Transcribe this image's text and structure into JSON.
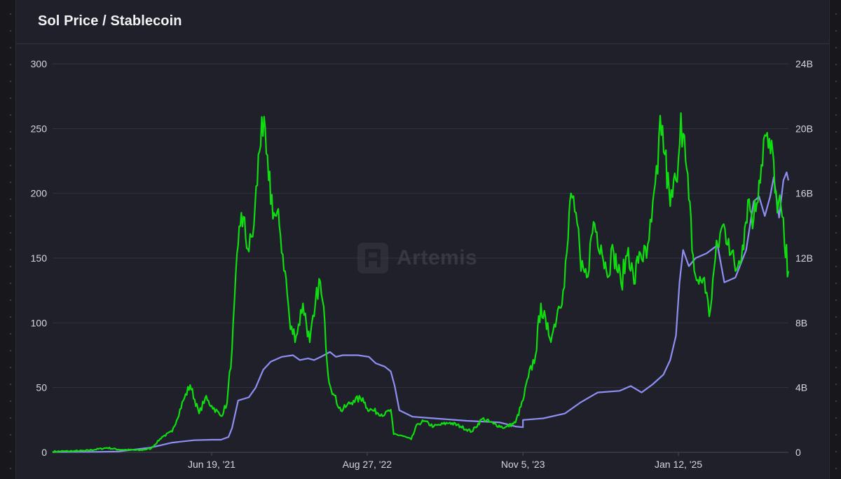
{
  "header": {
    "title": "Sol Price / Stablecoin"
  },
  "watermark": {
    "text": "Artemis"
  },
  "chart_data": {
    "type": "line",
    "title": "Sol Price / Stablecoin",
    "xlabel": "",
    "ylabel_left": "",
    "ylabel_right": "",
    "x_range": [
      "2020-04-01",
      "2025-11-15"
    ],
    "x_ticks": [
      {
        "date": "2021-06-19",
        "label": "Jun 19, '21"
      },
      {
        "date": "2022-08-27",
        "label": "Aug 27, '22"
      },
      {
        "date": "2023-11-05",
        "label": "Nov 5, '23"
      },
      {
        "date": "2025-01-12",
        "label": "Jan 12, '25"
      }
    ],
    "y_left": {
      "min": 0,
      "max": 300,
      "ticks": [
        "0",
        "50",
        "100",
        "150",
        "200",
        "250",
        "300"
      ]
    },
    "y_right": {
      "min": 0,
      "max": 24000000000,
      "ticks": [
        "0",
        "4B",
        "8B",
        "12B",
        "16B",
        "20B",
        "24B"
      ]
    },
    "grid": true,
    "legend": "none",
    "series": [
      {
        "axis": "left",
        "color": "#10dd10",
        "points": [
          [
            "2020-04-01",
            0.6
          ],
          [
            "2020-07-01",
            1.2
          ],
          [
            "2020-09-01",
            3.5
          ],
          [
            "2020-10-01",
            2.2
          ],
          [
            "2020-12-01",
            1.6
          ],
          [
            "2021-01-01",
            3
          ],
          [
            "2021-02-01",
            12
          ],
          [
            "2021-03-01",
            16
          ],
          [
            "2021-04-01",
            40
          ],
          [
            "2021-04-20",
            52
          ],
          [
            "2021-05-15",
            30
          ],
          [
            "2021-06-01",
            42
          ],
          [
            "2021-06-19",
            36
          ],
          [
            "2021-07-15",
            28
          ],
          [
            "2021-08-01",
            38
          ],
          [
            "2021-08-15",
            80
          ],
          [
            "2021-09-01",
            160
          ],
          [
            "2021-09-10",
            185
          ],
          [
            "2021-10-01",
            155
          ],
          [
            "2021-10-15",
            175
          ],
          [
            "2021-11-06",
            259
          ],
          [
            "2021-11-25",
            210
          ],
          [
            "2021-12-10",
            185
          ],
          [
            "2021-12-25",
            175
          ],
          [
            "2022-01-10",
            140
          ],
          [
            "2022-01-25",
            95
          ],
          [
            "2022-02-10",
            90
          ],
          [
            "2022-03-01",
            115
          ],
          [
            "2022-03-20",
            85
          ],
          [
            "2022-04-01",
            105
          ],
          [
            "2022-04-15",
            134
          ],
          [
            "2022-05-01",
            100
          ],
          [
            "2022-05-10",
            60
          ],
          [
            "2022-05-25",
            45
          ],
          [
            "2022-06-15",
            32
          ],
          [
            "2022-07-01",
            36
          ],
          [
            "2022-07-20",
            40
          ],
          [
            "2022-08-15",
            42
          ],
          [
            "2022-08-27",
            34
          ],
          [
            "2022-09-15",
            32
          ],
          [
            "2022-10-15",
            29
          ],
          [
            "2022-11-01",
            33
          ],
          [
            "2022-11-09",
            14
          ],
          [
            "2022-12-01",
            13
          ],
          [
            "2022-12-28",
            10
          ],
          [
            "2023-01-15",
            22
          ],
          [
            "2023-02-01",
            24
          ],
          [
            "2023-03-01",
            20
          ],
          [
            "2023-04-15",
            23
          ],
          [
            "2023-05-15",
            20
          ],
          [
            "2023-06-15",
            16
          ],
          [
            "2023-07-15",
            26
          ],
          [
            "2023-08-15",
            22
          ],
          [
            "2023-09-15",
            19
          ],
          [
            "2023-10-15",
            23
          ],
          [
            "2023-11-05",
            40
          ],
          [
            "2023-11-20",
            58
          ],
          [
            "2023-12-10",
            75
          ],
          [
            "2023-12-25",
            115
          ],
          [
            "2024-01-10",
            95
          ],
          [
            "2024-01-25",
            90
          ],
          [
            "2024-02-10",
            110
          ],
          [
            "2024-02-25",
            125
          ],
          [
            "2024-03-10",
            165
          ],
          [
            "2024-03-18",
            200
          ],
          [
            "2024-04-01",
            185
          ],
          [
            "2024-04-15",
            140
          ],
          [
            "2024-05-01",
            135
          ],
          [
            "2024-05-20",
            178
          ],
          [
            "2024-06-10",
            160
          ],
          [
            "2024-06-25",
            140
          ],
          [
            "2024-07-15",
            155
          ],
          [
            "2024-08-05",
            130
          ],
          [
            "2024-08-25",
            158
          ],
          [
            "2024-09-10",
            130
          ],
          [
            "2024-09-25",
            155
          ],
          [
            "2024-10-15",
            150
          ],
          [
            "2024-10-29",
            178
          ],
          [
            "2024-11-15",
            215
          ],
          [
            "2024-11-22",
            260
          ],
          [
            "2024-12-05",
            230
          ],
          [
            "2024-12-20",
            190
          ],
          [
            "2025-01-05",
            210
          ],
          [
            "2025-01-19",
            262
          ],
          [
            "2025-02-01",
            225
          ],
          [
            "2025-02-10",
            195
          ],
          [
            "2025-02-25",
            140
          ],
          [
            "2025-03-10",
            130
          ],
          [
            "2025-03-25",
            135
          ],
          [
            "2025-04-08",
            105
          ],
          [
            "2025-04-25",
            150
          ],
          [
            "2025-05-15",
            175
          ],
          [
            "2025-06-01",
            165
          ],
          [
            "2025-06-20",
            140
          ],
          [
            "2025-07-10",
            160
          ],
          [
            "2025-07-25",
            195
          ],
          [
            "2025-08-10",
            180
          ],
          [
            "2025-08-25",
            210
          ],
          [
            "2025-09-10",
            245
          ],
          [
            "2025-09-20",
            235
          ],
          [
            "2025-10-05",
            225
          ],
          [
            "2025-10-15",
            185
          ],
          [
            "2025-10-25",
            190
          ],
          [
            "2025-11-04",
            160
          ],
          [
            "2025-11-15",
            140
          ]
        ]
      },
      {
        "axis": "right",
        "color": "#8f8ff3",
        "points": [
          [
            "2020-04-01",
            0.02
          ],
          [
            "2020-08-01",
            0.03
          ],
          [
            "2020-10-01",
            0.05
          ],
          [
            "2021-01-01",
            0.3
          ],
          [
            "2021-03-01",
            0.6
          ],
          [
            "2021-05-01",
            0.75
          ],
          [
            "2021-06-19",
            0.78
          ],
          [
            "2021-07-15",
            0.78
          ],
          [
            "2021-08-05",
            0.95
          ],
          [
            "2021-08-15",
            1.5
          ],
          [
            "2021-09-01",
            3.2
          ],
          [
            "2021-10-01",
            3.4
          ],
          [
            "2021-10-20",
            4.0
          ],
          [
            "2021-11-10",
            5.1
          ],
          [
            "2021-12-01",
            5.6
          ],
          [
            "2022-01-01",
            5.9
          ],
          [
            "2022-02-01",
            6.0
          ],
          [
            "2022-02-20",
            5.7
          ],
          [
            "2022-03-15",
            5.8
          ],
          [
            "2022-04-01",
            5.7
          ],
          [
            "2022-04-20",
            5.9
          ],
          [
            "2022-05-15",
            6.2
          ],
          [
            "2022-06-01",
            5.9
          ],
          [
            "2022-06-20",
            6.0
          ],
          [
            "2022-08-01",
            6.0
          ],
          [
            "2022-09-01",
            5.9
          ],
          [
            "2022-09-20",
            5.5
          ],
          [
            "2022-10-15",
            5.3
          ],
          [
            "2022-11-01",
            5.0
          ],
          [
            "2022-11-12",
            4.1
          ],
          [
            "2022-11-25",
            2.6
          ],
          [
            "2023-01-01",
            2.2
          ],
          [
            "2023-03-01",
            2.1
          ],
          [
            "2023-06-01",
            1.95
          ],
          [
            "2023-09-01",
            1.85
          ],
          [
            "2023-10-15",
            1.6
          ],
          [
            "2023-11-05",
            1.55
          ],
          [
            "2023-11-05",
            2.0
          ],
          [
            "2024-01-01",
            2.1
          ],
          [
            "2024-03-01",
            2.4
          ],
          [
            "2024-04-15",
            3.1
          ],
          [
            "2024-06-01",
            3.7
          ],
          [
            "2024-08-01",
            3.8
          ],
          [
            "2024-09-01",
            4.1
          ],
          [
            "2024-10-01",
            3.7
          ],
          [
            "2024-11-01",
            4.2
          ],
          [
            "2024-12-01",
            4.8
          ],
          [
            "2024-12-20",
            5.7
          ],
          [
            "2025-01-05",
            7.2
          ],
          [
            "2025-01-15",
            10.5
          ],
          [
            "2025-01-25",
            12.5
          ],
          [
            "2025-02-10",
            11.5
          ],
          [
            "2025-03-01",
            12.0
          ],
          [
            "2025-04-01",
            12.3
          ],
          [
            "2025-05-01",
            12.8
          ],
          [
            "2025-05-20",
            10.5
          ],
          [
            "2025-06-20",
            10.8
          ],
          [
            "2025-07-20",
            12.5
          ],
          [
            "2025-08-10",
            15.5
          ],
          [
            "2025-08-25",
            15.8
          ],
          [
            "2025-09-10",
            14.6
          ],
          [
            "2025-09-25",
            15.8
          ],
          [
            "2025-10-05",
            17.0
          ],
          [
            "2025-10-20",
            14.5
          ],
          [
            "2025-11-01",
            16.8
          ],
          [
            "2025-11-10",
            17.3
          ],
          [
            "2025-11-15",
            16.8
          ]
        ],
        "value_unit": "B"
      }
    ]
  }
}
